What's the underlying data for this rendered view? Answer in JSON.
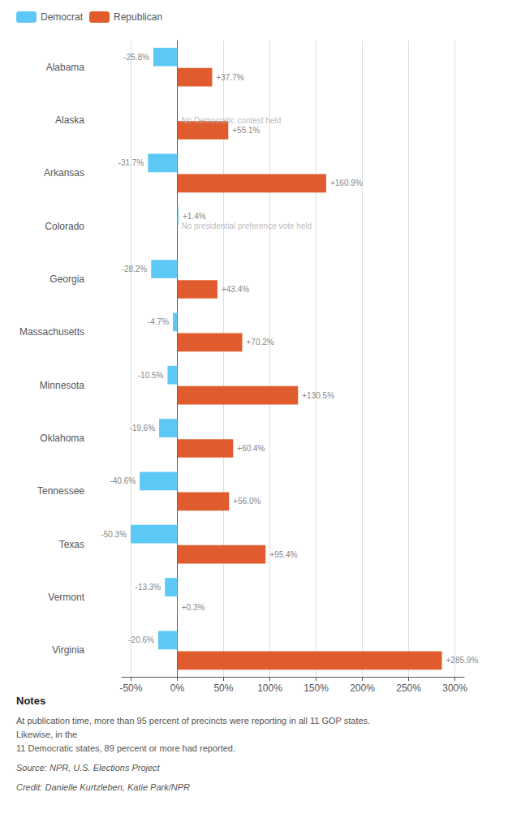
{
  "chart_data": {
    "type": "bar",
    "orientation": "horizontal",
    "categories": [
      "Alabama",
      "Alaska",
      "Arkansas",
      "Colorado",
      "Georgia",
      "Massachusetts",
      "Minnesota",
      "Oklahoma",
      "Tennessee",
      "Texas",
      "Vermont",
      "Virginia"
    ],
    "series": [
      {
        "name": "Democrat",
        "color": "#5bc8f5",
        "values": [
          -25.8,
          null,
          -31.7,
          1.4,
          -28.2,
          -4.7,
          -10.5,
          -19.6,
          -40.6,
          -50.3,
          -13.3,
          -20.6
        ],
        "value_labels": [
          "-25.8%",
          "No Democratic contest held",
          "-31.7%",
          "+1.4%",
          "-28.2%",
          "-4.7%",
          "-10.5%",
          "-19.6%",
          "-40.6%",
          "-50.3%",
          "-13.3%",
          "-20.6%"
        ]
      },
      {
        "name": "Republican",
        "color": "#e05c2e",
        "values": [
          37.7,
          55.1,
          160.9,
          null,
          43.4,
          70.2,
          130.5,
          60.4,
          56.0,
          95.4,
          0.3,
          285.9
        ],
        "value_labels": [
          "+37.7%",
          "+55.1%",
          "+160.9%",
          "No presidential preference vote held",
          "+43.4%",
          "+70.2%",
          "+130.5%",
          "+60.4%",
          "+56.0%",
          "+95.4%",
          "+0.3%",
          "+285.9%"
        ]
      }
    ],
    "xlim": [
      -60,
      310
    ],
    "xticks": [
      {
        "value": -50,
        "label": "-50%"
      },
      {
        "value": 0,
        "label": "0%"
      },
      {
        "value": 50,
        "label": "50%"
      },
      {
        "value": 100,
        "label": "100%"
      },
      {
        "value": 150,
        "label": "150%"
      },
      {
        "value": 200,
        "label": "200%"
      },
      {
        "value": 250,
        "label": "250%"
      },
      {
        "value": 300,
        "label": "300%"
      }
    ],
    "data_labels": true,
    "grid": true,
    "legend": "upper left",
    "annotations": [
      "Notes",
      "At publication time, more than 95 percent of precincts were reporting in all 11 GOP states. Likewise, in the\n11 Democratic states, 89 percent or more had reported.",
      "Source: NPR, U.S. Elections Project",
      "Credit: Danielle Kurtzleben, Katie Park/NPR"
    ]
  }
}
